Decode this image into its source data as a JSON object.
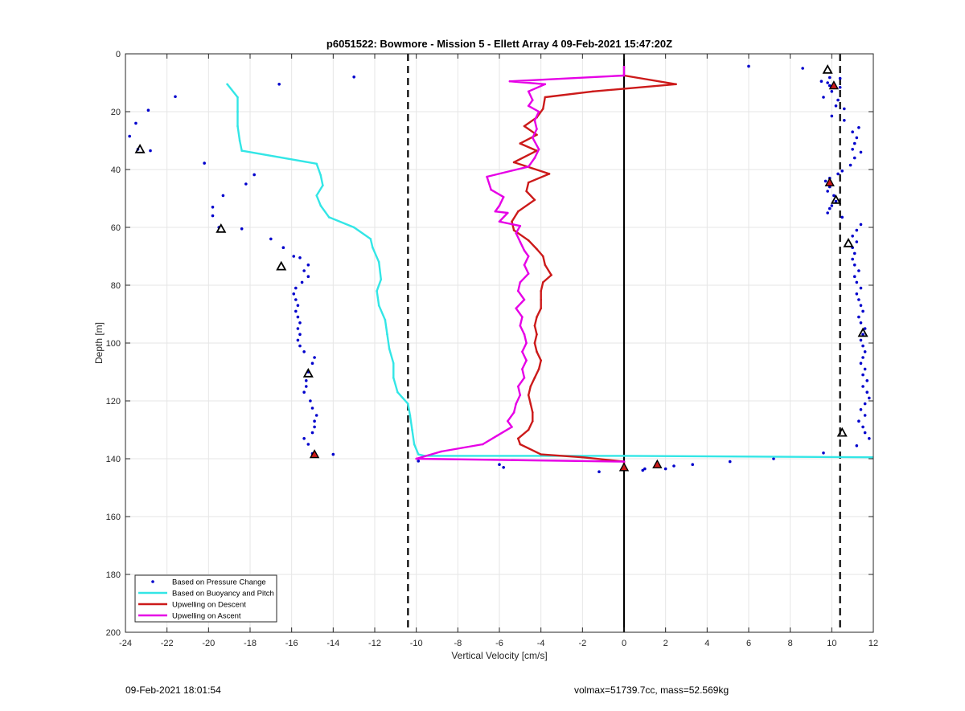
{
  "chart_data": {
    "type": "line",
    "title": "p6051522: Bowmore - Mission 5 - Ellett Array 4 09-Feb-2021 15:47:20Z",
    "xlabel": "Vertical Velocity [cm/s]",
    "ylabel": "Depth [m]",
    "xlim": [
      -24,
      12
    ],
    "ylim": [
      0,
      200
    ],
    "y_reversed": true,
    "grid": true,
    "legend_position": "bottom-left",
    "x_ticks": [
      -24,
      -22,
      -20,
      -18,
      -16,
      -14,
      -12,
      -10,
      -8,
      -6,
      -4,
      -2,
      0,
      2,
      4,
      6,
      8,
      10,
      12
    ],
    "y_ticks": [
      0,
      20,
      40,
      60,
      80,
      100,
      120,
      140,
      160,
      180,
      200
    ],
    "vertical_lines": [
      {
        "x": -10.4,
        "style": "dashed",
        "color": "#000000"
      },
      {
        "x": 0,
        "style": "solid",
        "color": "#000000"
      },
      {
        "x": 10.4,
        "style": "dashed",
        "color": "#000000"
      }
    ],
    "series": [
      {
        "name": "Based on Pressure Change",
        "kind": "scatter",
        "color": "#0000cc",
        "points": [
          [
            6.0,
            4.3
          ],
          [
            8.6,
            5.0
          ],
          [
            9.9,
            8.2
          ],
          [
            10.4,
            8.5
          ],
          [
            9.5,
            9.5
          ],
          [
            9.8,
            10.0
          ],
          [
            9.9,
            11.0
          ],
          [
            10.4,
            11.6
          ],
          [
            10.0,
            13.0
          ],
          [
            9.6,
            15.0
          ],
          [
            10.3,
            16.0
          ],
          [
            10.2,
            18.0
          ],
          [
            10.6,
            19.0
          ],
          [
            10.0,
            21.5
          ],
          [
            10.6,
            23.0
          ],
          [
            11.3,
            25.5
          ],
          [
            11.0,
            27.0
          ],
          [
            11.2,
            29.0
          ],
          [
            11.1,
            31.0
          ],
          [
            11.0,
            33.0
          ],
          [
            11.4,
            34.0
          ],
          [
            11.1,
            36.0
          ],
          [
            10.9,
            38.5
          ],
          [
            10.5,
            40.5
          ],
          [
            10.3,
            41.5
          ],
          [
            9.9,
            43.0
          ],
          [
            9.7,
            44.0
          ],
          [
            9.9,
            46.0
          ],
          [
            9.8,
            47.5
          ],
          [
            10.1,
            49.0
          ],
          [
            10.2,
            51.0
          ],
          [
            10.0,
            52.5
          ],
          [
            9.9,
            53.5
          ],
          [
            9.8,
            55.0
          ],
          [
            10.5,
            56.5
          ],
          [
            11.4,
            59.0
          ],
          [
            11.2,
            61.0
          ],
          [
            11.0,
            63.0
          ],
          [
            11.2,
            65.0
          ],
          [
            11.0,
            67.0
          ],
          [
            11.1,
            69.0
          ],
          [
            11.0,
            71.0
          ],
          [
            11.1,
            73.0
          ],
          [
            11.3,
            75.0
          ],
          [
            11.1,
            77.0
          ],
          [
            11.2,
            79.0
          ],
          [
            11.4,
            81.0
          ],
          [
            11.2,
            83.0
          ],
          [
            11.3,
            85.0
          ],
          [
            11.4,
            87.0
          ],
          [
            11.5,
            89.0
          ],
          [
            11.3,
            91.0
          ],
          [
            11.4,
            93.0
          ],
          [
            11.6,
            95.0
          ],
          [
            11.5,
            97.0
          ],
          [
            11.4,
            99.0
          ],
          [
            11.5,
            101.0
          ],
          [
            11.6,
            103.0
          ],
          [
            11.5,
            105.0
          ],
          [
            11.4,
            107.0
          ],
          [
            11.6,
            109.0
          ],
          [
            11.5,
            111.0
          ],
          [
            11.7,
            113.0
          ],
          [
            11.5,
            115.0
          ],
          [
            11.7,
            117.0
          ],
          [
            11.8,
            119.0
          ],
          [
            11.6,
            121.0
          ],
          [
            11.4,
            123.0
          ],
          [
            11.6,
            125.0
          ],
          [
            11.3,
            127.0
          ],
          [
            11.5,
            129.0
          ],
          [
            11.6,
            131.0
          ],
          [
            11.8,
            133.0
          ],
          [
            11.2,
            135.5
          ],
          [
            9.6,
            138.0
          ],
          [
            7.2,
            140.0
          ],
          [
            5.1,
            141.0
          ],
          [
            3.3,
            142.0
          ],
          [
            2.4,
            142.5
          ],
          [
            2.0,
            143.5
          ],
          [
            1.0,
            143.5
          ],
          [
            0.9,
            144.0
          ],
          [
            -1.2,
            144.5
          ],
          [
            -5.8,
            143.0
          ],
          [
            -6.0,
            142.0
          ],
          [
            -9.9,
            140.8
          ],
          [
            -14.0,
            138.5
          ],
          [
            -15.0,
            138.2
          ],
          [
            -15.2,
            135.0
          ],
          [
            -15.4,
            133.0
          ],
          [
            -15.0,
            131.0
          ],
          [
            -14.9,
            129.0
          ],
          [
            -14.9,
            127.0
          ],
          [
            -14.8,
            125.0
          ],
          [
            -15.0,
            122.5
          ],
          [
            -15.1,
            120.0
          ],
          [
            -15.4,
            117.0
          ],
          [
            -15.3,
            115.0
          ],
          [
            -15.3,
            113.0
          ],
          [
            -15.2,
            110.0
          ],
          [
            -15.0,
            107.0
          ],
          [
            -14.9,
            105.0
          ],
          [
            -15.4,
            103.0
          ],
          [
            -15.6,
            101.0
          ],
          [
            -15.7,
            99.0
          ],
          [
            -15.6,
            97.0
          ],
          [
            -15.7,
            95.0
          ],
          [
            -15.6,
            93.0
          ],
          [
            -15.7,
            91.0
          ],
          [
            -15.8,
            89.0
          ],
          [
            -15.7,
            87.0
          ],
          [
            -15.8,
            85.0
          ],
          [
            -15.9,
            83.0
          ],
          [
            -15.8,
            81.0
          ],
          [
            -15.5,
            79.0
          ],
          [
            -15.2,
            77.0
          ],
          [
            -15.4,
            75.0
          ],
          [
            -15.2,
            73.0
          ],
          [
            -15.6,
            70.5
          ],
          [
            -15.9,
            70.0
          ],
          [
            -16.4,
            67.0
          ],
          [
            -17.0,
            64.0
          ],
          [
            -18.4,
            60.5
          ],
          [
            -19.5,
            60.0
          ],
          [
            -19.8,
            56.0
          ],
          [
            -19.8,
            53.0
          ],
          [
            -19.3,
            49.0
          ],
          [
            -18.2,
            45.0
          ],
          [
            -17.8,
            41.8
          ],
          [
            -20.2,
            37.8
          ],
          [
            -22.8,
            33.5
          ],
          [
            -23.4,
            33.0
          ],
          [
            -23.8,
            28.5
          ],
          [
            -23.5,
            24.0
          ],
          [
            -22.9,
            19.5
          ],
          [
            -21.6,
            14.8
          ],
          [
            -16.6,
            10.5
          ],
          [
            -13.0,
            8.0
          ]
        ]
      },
      {
        "name": "Based on Buoyancy and Pitch",
        "kind": "line",
        "color": "#33e6e6",
        "points": [
          [
            -19.1,
            10.5
          ],
          [
            -18.6,
            15.0
          ],
          [
            -18.6,
            20.0
          ],
          [
            -18.6,
            25.0
          ],
          [
            -18.5,
            30.0
          ],
          [
            -18.4,
            33.5
          ],
          [
            -14.8,
            38.0
          ],
          [
            -14.6,
            42.0
          ],
          [
            -14.5,
            45.5
          ],
          [
            -14.8,
            49.0
          ],
          [
            -14.6,
            52.5
          ],
          [
            -14.2,
            56.5
          ],
          [
            -13.0,
            60.0
          ],
          [
            -12.2,
            64.0
          ],
          [
            -12.1,
            67.0
          ],
          [
            -11.8,
            72.0
          ],
          [
            -11.7,
            78.0
          ],
          [
            -11.9,
            82.0
          ],
          [
            -11.8,
            87.0
          ],
          [
            -11.5,
            92.0
          ],
          [
            -11.4,
            97.0
          ],
          [
            -11.3,
            102.0
          ],
          [
            -11.1,
            107.0
          ],
          [
            -11.1,
            112.0
          ],
          [
            -10.9,
            117.0
          ],
          [
            -10.4,
            121.0
          ],
          [
            -10.3,
            125.0
          ],
          [
            -10.2,
            130.0
          ],
          [
            -10.1,
            135.0
          ],
          [
            -9.9,
            138.5
          ],
          [
            -9.6,
            139.0
          ],
          [
            0.0,
            139.0
          ],
          [
            12.0,
            139.5
          ]
        ]
      },
      {
        "name": "Upwelling on Descent",
        "kind": "line",
        "color": "#cc1a1a",
        "points": [
          [
            0.0,
            7.5
          ],
          [
            2.5,
            10.5
          ],
          [
            -1.5,
            13.0
          ],
          [
            -3.8,
            15.0
          ],
          [
            -3.9,
            19.0
          ],
          [
            -4.2,
            22.0
          ],
          [
            -4.8,
            25.0
          ],
          [
            -4.2,
            28.0
          ],
          [
            -5.0,
            31.0
          ],
          [
            -4.2,
            33.5
          ],
          [
            -5.3,
            37.5
          ],
          [
            -3.6,
            41.5
          ],
          [
            -4.6,
            44.5
          ],
          [
            -4.7,
            47.5
          ],
          [
            -4.3,
            50.5
          ],
          [
            -5.1,
            54.5
          ],
          [
            -5.4,
            58.0
          ],
          [
            -5.3,
            61.0
          ],
          [
            -4.6,
            64.5
          ],
          [
            -4.2,
            67.5
          ],
          [
            -3.9,
            70.0
          ],
          [
            -3.8,
            73.0
          ],
          [
            -3.5,
            76.5
          ],
          [
            -3.9,
            79.0
          ],
          [
            -4.0,
            82.0
          ],
          [
            -4.0,
            85.0
          ],
          [
            -4.0,
            88.0
          ],
          [
            -4.2,
            91.0
          ],
          [
            -4.3,
            94.0
          ],
          [
            -4.2,
            97.0
          ],
          [
            -4.3,
            100.0
          ],
          [
            -4.2,
            103.0
          ],
          [
            -4.0,
            106.0
          ],
          [
            -4.1,
            109.0
          ],
          [
            -4.3,
            112.0
          ],
          [
            -4.5,
            115.0
          ],
          [
            -4.6,
            118.0
          ],
          [
            -4.5,
            121.0
          ],
          [
            -4.4,
            124.0
          ],
          [
            -4.4,
            127.0
          ],
          [
            -4.6,
            130.0
          ],
          [
            -5.1,
            133.0
          ],
          [
            -5.0,
            135.0
          ],
          [
            -4.0,
            138.5
          ],
          [
            -2.0,
            139.5
          ],
          [
            0.0,
            141.0
          ],
          [
            0.0,
            143.0
          ]
        ]
      },
      {
        "name": "Upwelling on Ascent",
        "kind": "line",
        "color": "#e600e6",
        "points": [
          [
            0.0,
            4.5
          ],
          [
            0.0,
            7.5
          ],
          [
            -5.5,
            9.5
          ],
          [
            -3.8,
            10.5
          ],
          [
            -4.6,
            13.0
          ],
          [
            -4.4,
            16.0
          ],
          [
            -4.6,
            18.0
          ],
          [
            -4.1,
            20.0
          ],
          [
            -4.3,
            23.0
          ],
          [
            -4.2,
            26.0
          ],
          [
            -4.4,
            29.0
          ],
          [
            -4.1,
            33.0
          ],
          [
            -4.3,
            36.0
          ],
          [
            -4.6,
            39.0
          ],
          [
            -6.6,
            42.5
          ],
          [
            -6.4,
            47.0
          ],
          [
            -5.8,
            49.5
          ],
          [
            -6.0,
            52.5
          ],
          [
            -6.2,
            54.5
          ],
          [
            -5.6,
            55.0
          ],
          [
            -6.0,
            58.0
          ],
          [
            -5.0,
            59.5
          ],
          [
            -5.2,
            62.0
          ],
          [
            -5.0,
            65.0
          ],
          [
            -4.8,
            68.0
          ],
          [
            -4.6,
            70.0
          ],
          [
            -4.8,
            73.0
          ],
          [
            -4.6,
            76.0
          ],
          [
            -5.0,
            79.0
          ],
          [
            -5.1,
            82.0
          ],
          [
            -4.8,
            85.0
          ],
          [
            -5.2,
            88.0
          ],
          [
            -4.9,
            91.0
          ],
          [
            -5.0,
            94.0
          ],
          [
            -4.8,
            97.0
          ],
          [
            -4.7,
            100.0
          ],
          [
            -4.9,
            103.0
          ],
          [
            -4.7,
            106.0
          ],
          [
            -4.9,
            109.0
          ],
          [
            -4.8,
            112.0
          ],
          [
            -5.1,
            115.0
          ],
          [
            -5.0,
            118.0
          ],
          [
            -5.2,
            121.0
          ],
          [
            -5.3,
            124.0
          ],
          [
            -5.6,
            127.0
          ],
          [
            -5.4,
            129.0
          ],
          [
            -6.1,
            132.0
          ],
          [
            -6.8,
            135.0
          ],
          [
            -8.8,
            137.5
          ],
          [
            -10.0,
            140.0
          ],
          [
            0.0,
            141.0
          ]
        ]
      },
      {
        "name": "markers_triangle_red",
        "kind": "markers",
        "marker": "triangle-up",
        "color": "#cc1a1a",
        "points": [
          [
            10.1,
            11.0
          ],
          [
            9.9,
            44.5
          ],
          [
            -14.9,
            138.5
          ],
          [
            1.6,
            142.0
          ],
          [
            0.0,
            143.0
          ]
        ]
      },
      {
        "name": "markers_triangle_open",
        "kind": "markers",
        "marker": "triangle-open",
        "color": "#000000",
        "points": [
          [
            9.8,
            5.5
          ],
          [
            -23.3,
            33.0
          ],
          [
            10.2,
            50.5
          ],
          [
            -19.4,
            60.5
          ],
          [
            10.8,
            65.5
          ],
          [
            -16.5,
            73.5
          ],
          [
            11.5,
            96.5
          ],
          [
            -15.2,
            110.5
          ],
          [
            10.5,
            131.0
          ]
        ]
      }
    ]
  },
  "footer": {
    "timestamp": "09-Feb-2021 18:01:54",
    "info": "volmax=51739.7cc, mass=52.569kg"
  }
}
